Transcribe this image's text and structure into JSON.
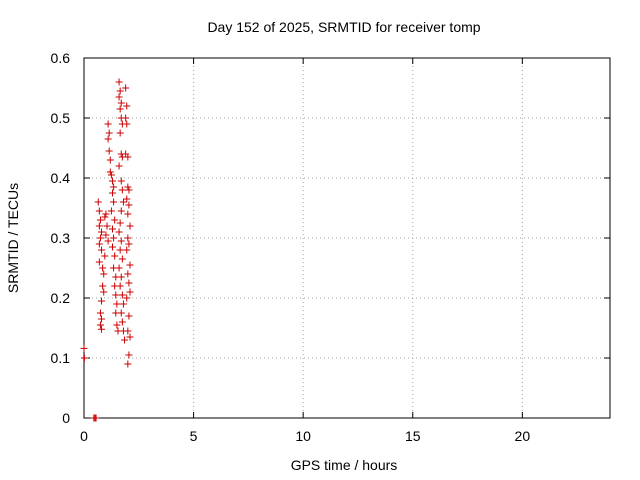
{
  "chart_data": {
    "type": "scatter",
    "title": "Day 152 of 2025, SRMTID for receiver tomp",
    "xlabel": "GPS time / hours",
    "ylabel": "SRMTID / TECUs",
    "xlim": [
      0,
      24
    ],
    "ylim": [
      0,
      0.6
    ],
    "xticks": [
      "0",
      "5",
      "10",
      "15",
      "20"
    ],
    "xtick_values": [
      0,
      5,
      10,
      15,
      20
    ],
    "yticks": [
      "0",
      "0.1",
      "0.2",
      "0.3",
      "0.4",
      "0.5",
      "0.6"
    ],
    "ytick_values": [
      0,
      0.1,
      0.2,
      0.3,
      0.4,
      0.5,
      0.6
    ],
    "grid": true,
    "marker": "plus",
    "color": "#cc0000",
    "points": [
      [
        0.0,
        0.116
      ],
      [
        0.02,
        0.1
      ],
      [
        0.45,
        0.0
      ],
      [
        0.5,
        0.0
      ],
      [
        0.55,
        0.0
      ],
      [
        0.65,
        0.36
      ],
      [
        0.7,
        0.345
      ],
      [
        0.75,
        0.33
      ],
      [
        0.7,
        0.32
      ],
      [
        0.8,
        0.31
      ],
      [
        0.75,
        0.3
      ],
      [
        0.7,
        0.29
      ],
      [
        0.8,
        0.28
      ],
      [
        0.7,
        0.26
      ],
      [
        0.85,
        0.25
      ],
      [
        0.9,
        0.24
      ],
      [
        0.85,
        0.22
      ],
      [
        0.9,
        0.21
      ],
      [
        0.8,
        0.195
      ],
      [
        0.75,
        0.175
      ],
      [
        0.8,
        0.165
      ],
      [
        0.75,
        0.155
      ],
      [
        0.8,
        0.148
      ],
      [
        0.95,
        0.335
      ],
      [
        1.0,
        0.34
      ],
      [
        1.05,
        0.32
      ],
      [
        1.0,
        0.305
      ],
      [
        1.1,
        0.295
      ],
      [
        0.95,
        0.27
      ],
      [
        1.1,
        0.49
      ],
      [
        1.15,
        0.475
      ],
      [
        1.1,
        0.465
      ],
      [
        1.15,
        0.445
      ],
      [
        1.2,
        0.43
      ],
      [
        1.2,
        0.41
      ],
      [
        1.25,
        0.405
      ],
      [
        1.3,
        0.395
      ],
      [
        1.35,
        0.385
      ],
      [
        1.3,
        0.375
      ],
      [
        1.35,
        0.36
      ],
      [
        1.25,
        0.345
      ],
      [
        1.4,
        0.33
      ],
      [
        1.3,
        0.315
      ],
      [
        1.35,
        0.3
      ],
      [
        1.3,
        0.285
      ],
      [
        1.4,
        0.27
      ],
      [
        1.35,
        0.25
      ],
      [
        1.45,
        0.235
      ],
      [
        1.4,
        0.22
      ],
      [
        1.45,
        0.205
      ],
      [
        1.5,
        0.19
      ],
      [
        1.45,
        0.175
      ],
      [
        1.5,
        0.155
      ],
      [
        1.55,
        0.145
      ],
      [
        1.6,
        0.56
      ],
      [
        1.65,
        0.545
      ],
      [
        1.6,
        0.535
      ],
      [
        1.7,
        0.525
      ],
      [
        1.65,
        0.515
      ],
      [
        1.7,
        0.5
      ],
      [
        1.75,
        0.49
      ],
      [
        1.65,
        0.475
      ],
      [
        1.7,
        0.44
      ],
      [
        1.75,
        0.435
      ],
      [
        1.6,
        0.42
      ],
      [
        1.7,
        0.395
      ],
      [
        1.75,
        0.38
      ],
      [
        1.8,
        0.36
      ],
      [
        1.7,
        0.345
      ],
      [
        1.65,
        0.325
      ],
      [
        1.6,
        0.31
      ],
      [
        1.7,
        0.295
      ],
      [
        1.65,
        0.28
      ],
      [
        1.75,
        0.265
      ],
      [
        1.6,
        0.25
      ],
      [
        1.7,
        0.235
      ],
      [
        1.65,
        0.22
      ],
      [
        1.75,
        0.205
      ],
      [
        1.8,
        0.19
      ],
      [
        1.7,
        0.175
      ],
      [
        1.75,
        0.16
      ],
      [
        1.8,
        0.145
      ],
      [
        1.85,
        0.13
      ],
      [
        1.9,
        0.55
      ],
      [
        1.95,
        0.52
      ],
      [
        1.9,
        0.5
      ],
      [
        1.95,
        0.49
      ],
      [
        1.9,
        0.44
      ],
      [
        2.0,
        0.435
      ],
      [
        2.0,
        0.385
      ],
      [
        2.05,
        0.38
      ],
      [
        1.95,
        0.365
      ],
      [
        2.05,
        0.355
      ],
      [
        2.0,
        0.34
      ],
      [
        2.1,
        0.32
      ],
      [
        2.0,
        0.3
      ],
      [
        2.05,
        0.29
      ],
      [
        1.95,
        0.28
      ],
      [
        2.1,
        0.255
      ],
      [
        2.0,
        0.24
      ],
      [
        2.05,
        0.225
      ],
      [
        2.1,
        0.21
      ],
      [
        1.95,
        0.2
      ],
      [
        2.05,
        0.17
      ],
      [
        2.0,
        0.145
      ],
      [
        2.1,
        0.135
      ],
      [
        2.05,
        0.105
      ],
      [
        2.0,
        0.09
      ]
    ]
  }
}
